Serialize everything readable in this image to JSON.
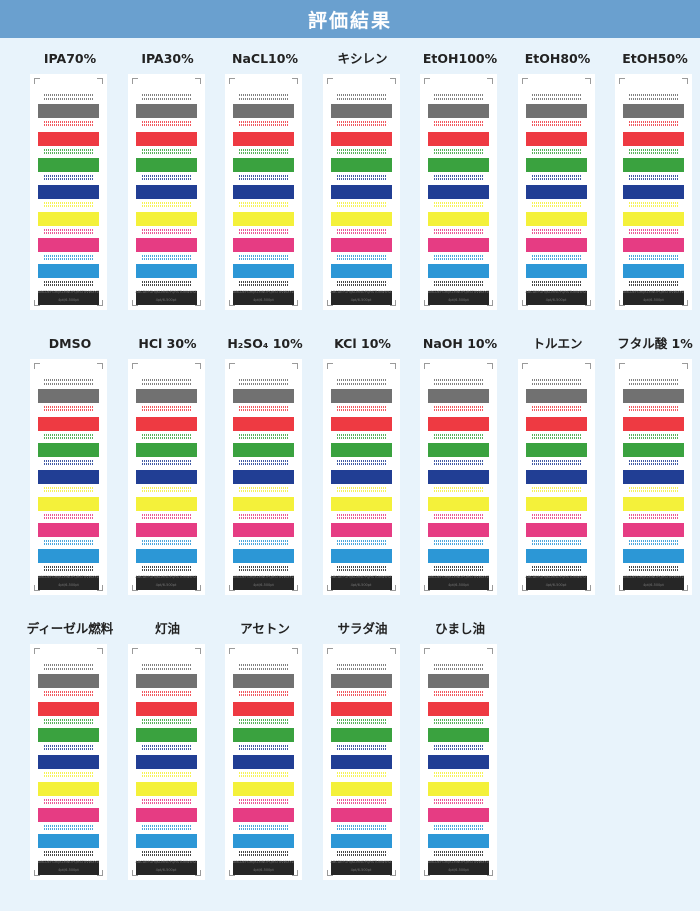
{
  "title": "評価結果",
  "card_text": {
    "foot_code": "ABCDEFGHIJKLMNOPQRSTUVWXYZ",
    "foot_size": "4pt/6-500pt"
  },
  "colors": {
    "gray": "#717171",
    "red": "#ee3a42",
    "green": "#3aa23f",
    "blue": "#213e94",
    "yellow": "#f4f13a",
    "magenta": "#e63c83",
    "cyan": "#2c97d6",
    "black": "#262626"
  },
  "samples": [
    {
      "label": "IPA70%"
    },
    {
      "label": "IPA30%"
    },
    {
      "label": "NaCL10%"
    },
    {
      "label": "キシレン"
    },
    {
      "label": "EtOH100%"
    },
    {
      "label": "EtOH80%"
    },
    {
      "label": "EtOH50%"
    },
    {
      "label": "DMSO"
    },
    {
      "label": "HCl 30%"
    },
    {
      "label": "H₂SO₄ 10%"
    },
    {
      "label": "KCl 10%"
    },
    {
      "label": "NaOH 10%"
    },
    {
      "label": "トルエン"
    },
    {
      "label": "フタル酸 1%"
    },
    {
      "label": "ディーゼル燃料"
    },
    {
      "label": "灯油"
    },
    {
      "label": "アセトン"
    },
    {
      "label": "サラダ油"
    },
    {
      "label": "ひまし油"
    }
  ]
}
